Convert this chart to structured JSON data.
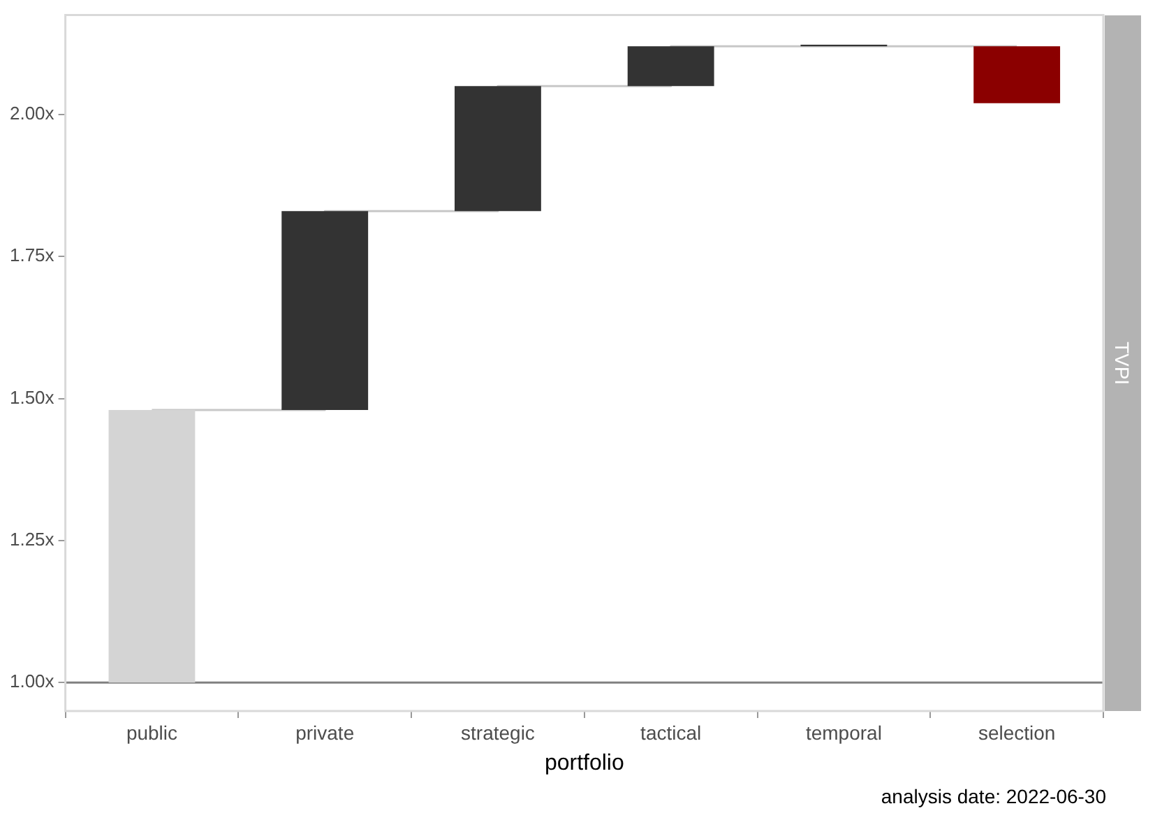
{
  "chart_data": {
    "type": "bar",
    "xlabel": "portfolio",
    "y2label": "TVPI",
    "categories": [
      "public",
      "private",
      "strategic",
      "tactical",
      "temporal",
      "selection"
    ],
    "series": [
      {
        "type": "bar",
        "values": [
          0.48,
          0.35,
          0.22,
          0.07,
          0.003,
          -0.1
        ],
        "base": [
          1.0,
          1.48,
          1.83,
          2.05,
          2.12,
          2.12
        ],
        "colors": [
          "#d4d4d4",
          "#333333",
          "#333333",
          "#333333",
          "#333333",
          "#8b0000"
        ]
      },
      {
        "type": "step",
        "color": "#c8c8c8",
        "values": [
          1.48,
          1.83,
          2.05,
          2.12,
          2.12,
          2.12
        ]
      }
    ],
    "ylim": [
      0.95,
      2.175
    ],
    "yticks": [
      {
        "value": 1,
        "label": "1.00x"
      },
      {
        "value": 1.25,
        "label": "1.25x"
      },
      {
        "value": 1.5,
        "label": "1.50x"
      },
      {
        "value": 1.75,
        "label": "1.75x"
      },
      {
        "value": 2,
        "label": "2.00x"
      }
    ],
    "ref_lines": [
      {
        "axis": "y",
        "value": 1,
        "color": "#808080"
      }
    ],
    "grid": false,
    "legend": false,
    "annotations": [
      "analysis date: 2022-06-30"
    ]
  }
}
